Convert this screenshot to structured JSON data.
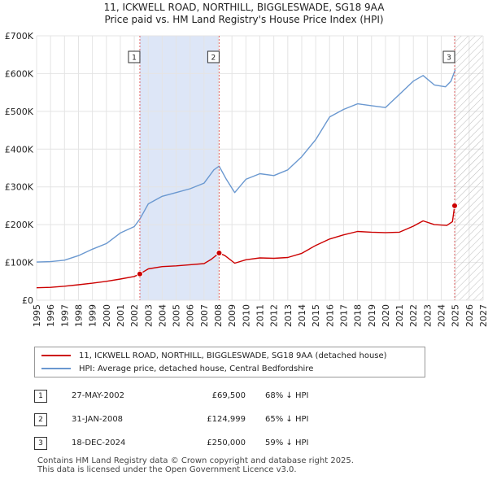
{
  "title_line1": "11, ICKWELL ROAD, NORTHILL, BIGGLESWADE, SG18 9AA",
  "title_line2": "Price paid vs. HM Land Registry's House Price Index (HPI)",
  "colors": {
    "property": "#cc0000",
    "hpi": "#6a98d0",
    "shade": "#dde6f7",
    "marker_line": "#e06060"
  },
  "legend": {
    "property": "11, ICKWELL ROAD, NORTHILL, BIGGLESWADE, SG18 9AA (detached house)",
    "hpi": "HPI: Average price, detached house, Central Bedfordshire"
  },
  "sales": [
    {
      "num": "1",
      "date": "27-MAY-2002",
      "price": "£69,500",
      "hpi": "68% ↓ HPI"
    },
    {
      "num": "2",
      "date": "31-JAN-2008",
      "price": "£124,999",
      "hpi": "65% ↓ HPI"
    },
    {
      "num": "3",
      "date": "18-DEC-2024",
      "price": "£250,000",
      "hpi": "59% ↓ HPI"
    }
  ],
  "footer_line1": "Contains HM Land Registry data © Crown copyright and database right 2025.",
  "footer_line2": "This data is licensed under the Open Government Licence v3.0.",
  "chart_data": {
    "type": "line",
    "title": "Price paid vs. HM Land Registry's House Price Index (HPI)",
    "xlim": [
      1995,
      2027
    ],
    "ylim": [
      0,
      700000
    ],
    "x_ticks": [
      "1995",
      "1996",
      "1997",
      "1998",
      "1999",
      "2000",
      "2001",
      "2002",
      "2003",
      "2004",
      "2005",
      "2006",
      "2007",
      "2008",
      "2009",
      "2010",
      "2011",
      "2012",
      "2013",
      "2014",
      "2015",
      "2016",
      "2017",
      "2018",
      "2019",
      "2020",
      "2021",
      "2022",
      "2023",
      "2024",
      "2025",
      "2026",
      "2027"
    ],
    "y_ticks": [
      {
        "value": 0,
        "label": "£0"
      },
      {
        "value": 100000,
        "label": "£100K"
      },
      {
        "value": 200000,
        "label": "£200K"
      },
      {
        "value": 300000,
        "label": "£300K"
      },
      {
        "value": 400000,
        "label": "£400K"
      },
      {
        "value": 500000,
        "label": "£500K"
      },
      {
        "value": 600000,
        "label": "£600K"
      },
      {
        "value": 700000,
        "label": "£700K"
      }
    ],
    "grid": true,
    "shaded_ranges": [
      [
        2002.4,
        2008.08
      ]
    ],
    "forecast_start": 2025.0,
    "sale_markers": [
      {
        "label": "1",
        "x": 2002.4,
        "y": 69500
      },
      {
        "label": "2",
        "x": 2008.08,
        "y": 124999
      },
      {
        "label": "3",
        "x": 2024.96,
        "y": 250000
      }
    ],
    "series": [
      {
        "name": "11, ICKWELL ROAD, NORTHILL, BIGGLESWADE, SG18 9AA (detached house)",
        "color": "#cc0000",
        "x": [
          1995,
          1996,
          1997,
          1998,
          1999,
          2000,
          2001,
          2002,
          2002.4,
          2003,
          2004,
          2005,
          2006,
          2007,
          2007.5,
          2008.08,
          2008.5,
          2009.2,
          2010,
          2011,
          2012,
          2013,
          2014,
          2015,
          2016,
          2017,
          2018,
          2019,
          2020,
          2021,
          2022,
          2022.7,
          2023.5,
          2024.4,
          2024.8,
          2024.96
        ],
        "y": [
          33000,
          34000,
          37000,
          41000,
          45000,
          50000,
          56000,
          63000,
          69500,
          83000,
          89000,
          91000,
          94000,
          97000,
          108000,
          124999,
          118000,
          98000,
          107000,
          112000,
          111000,
          113000,
          124000,
          145000,
          162000,
          173000,
          182000,
          180000,
          179000,
          180000,
          196000,
          210000,
          200000,
          198000,
          208000,
          250000
        ]
      },
      {
        "name": "HPI: Average price, detached house, Central Bedfordshire",
        "color": "#6a98d0",
        "x": [
          1995,
          1996,
          1997,
          1998,
          1999,
          2000,
          2001,
          2002,
          2002.4,
          2003,
          2004,
          2005,
          2006,
          2007,
          2007.7,
          2008.08,
          2008.6,
          2009.2,
          2010,
          2011,
          2012,
          2013,
          2014,
          2015,
          2016,
          2017,
          2018,
          2019,
          2020,
          2021,
          2022,
          2022.7,
          2023.5,
          2024.3,
          2024.7,
          2025
        ],
        "y": [
          101000,
          102000,
          106000,
          118000,
          135000,
          150000,
          178000,
          195000,
          215000,
          255000,
          275000,
          285000,
          295000,
          310000,
          345000,
          355000,
          320000,
          285000,
          320000,
          335000,
          330000,
          345000,
          380000,
          425000,
          485000,
          505000,
          520000,
          515000,
          510000,
          545000,
          580000,
          595000,
          570000,
          565000,
          580000,
          610000
        ]
      }
    ]
  }
}
